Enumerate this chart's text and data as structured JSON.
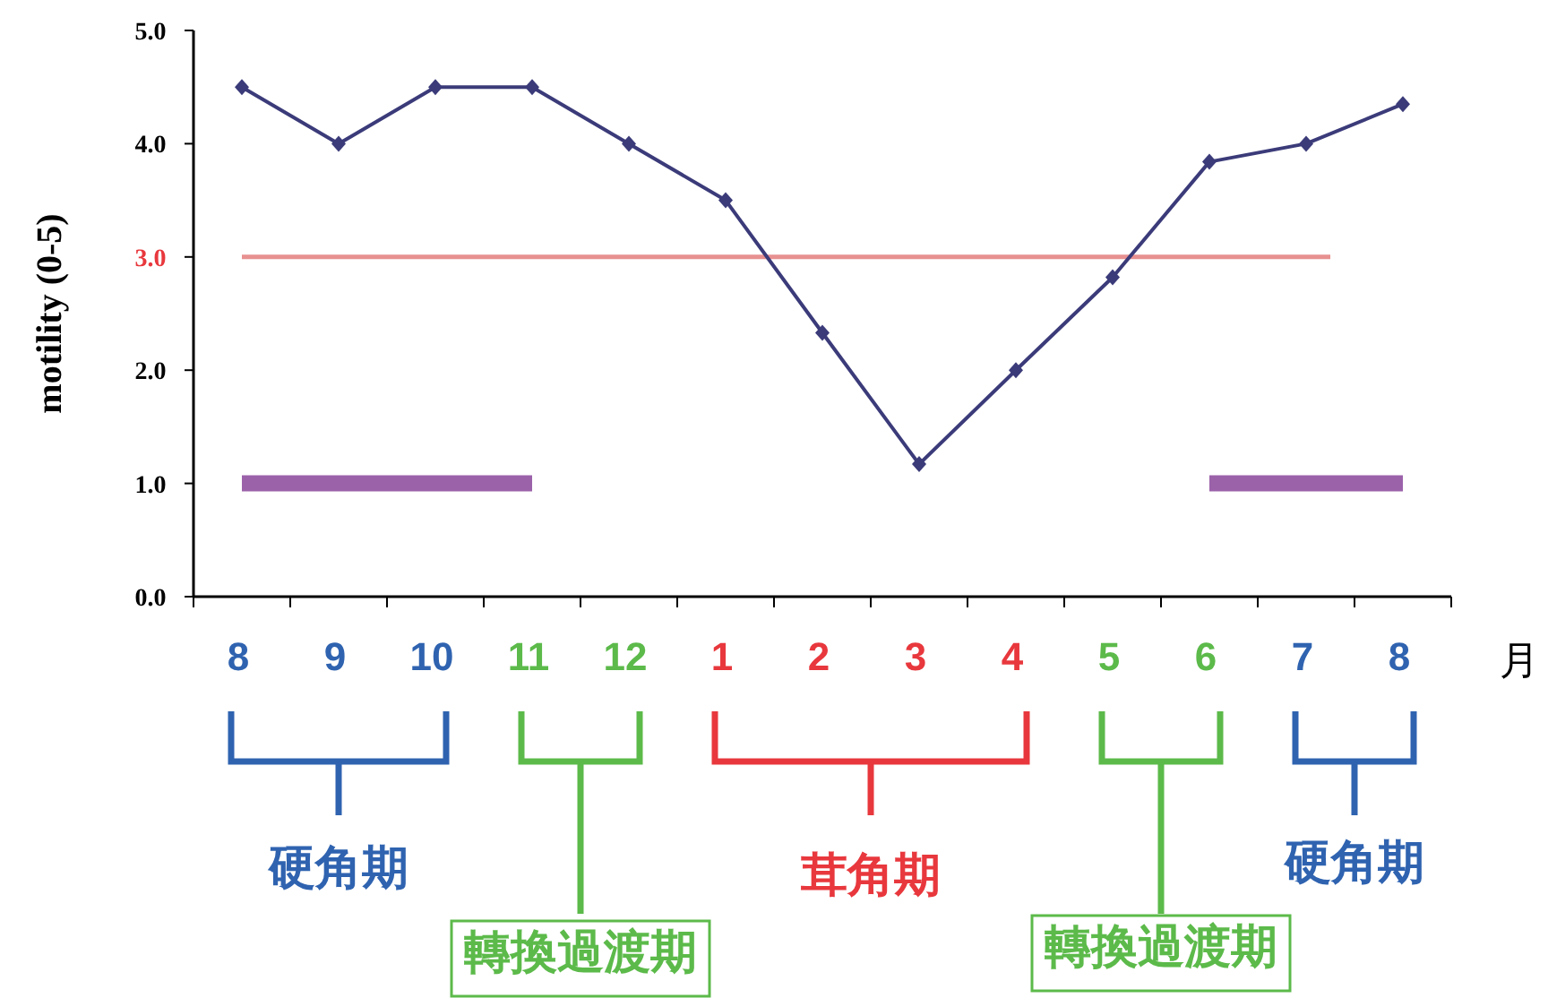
{
  "chart_data": {
    "type": "line",
    "ylabel": "motility (0-5)",
    "xlabel": "月",
    "categories": [
      "8",
      "9",
      "10",
      "11",
      "12",
      "1",
      "2",
      "3",
      "4",
      "5",
      "6",
      "7",
      "8"
    ],
    "ylim": [
      0,
      5
    ],
    "yticks": [
      {
        "value": 0,
        "label": "0.0"
      },
      {
        "value": 1,
        "label": "1.0"
      },
      {
        "value": 2,
        "label": "2.0"
      },
      {
        "value": 3,
        "label": "3.0"
      },
      {
        "value": 4,
        "label": "4.0"
      },
      {
        "value": 5,
        "label": "5.0"
      }
    ],
    "series": [
      {
        "color": "#3b3b7a",
        "marker": "diamond",
        "values": [
          4.5,
          4.0,
          4.5,
          4.5,
          4.0,
          3.5,
          2.33,
          1.17,
          2.0,
          2.82,
          3.84,
          4.0,
          4.35
        ]
      },
      {
        "color": "#9b62aa",
        "marker": "none",
        "values": [
          1.0,
          1.0,
          1.0,
          1.0,
          null,
          null,
          null,
          null,
          null,
          null,
          1.0,
          1.0,
          1.0
        ]
      }
    ],
    "ref_lines": [
      {
        "axis": "y",
        "value": 3.0,
        "color": "#e89090"
      }
    ],
    "annotations": [
      "硬角期",
      "轉換過渡期",
      "茸角期",
      "轉換過渡期",
      "硬角期"
    ]
  }
}
